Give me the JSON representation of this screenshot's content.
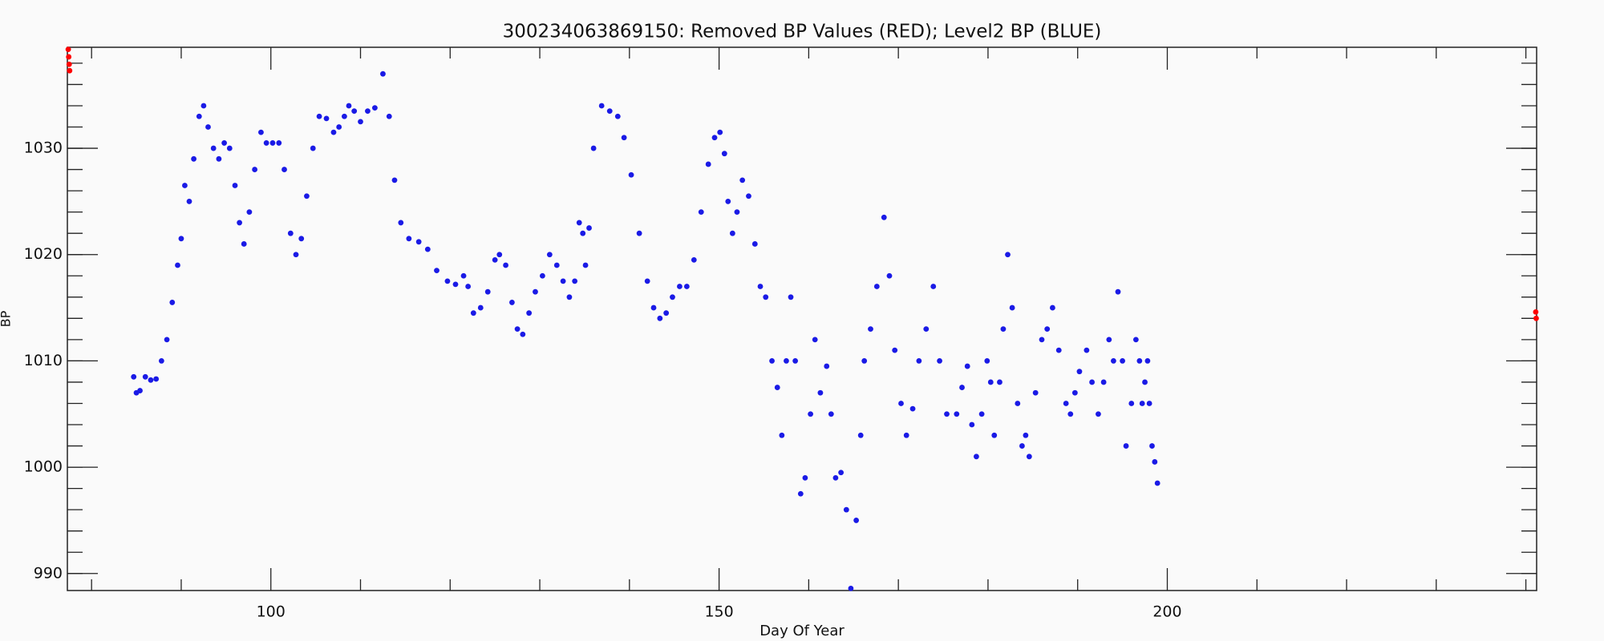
{
  "chart_data": {
    "type": "scatter",
    "title": "300234063869150: Removed BP Values (RED); Level2 BP (BLUE)",
    "x_label": "Day Of Year",
    "y_label": "BP",
    "xlim": [
      77.3,
      241.2
    ],
    "ylim": [
      988.4,
      1039.5
    ],
    "xticks": [
      100,
      150,
      200
    ],
    "yticks": [
      990,
      1000,
      1010,
      1020,
      1030
    ],
    "xminorticks": [
      80,
      90,
      110,
      120,
      130,
      140,
      160,
      170,
      180,
      190,
      210,
      220,
      230,
      240
    ],
    "yminorticks": [
      990,
      992,
      994,
      996,
      998,
      1000,
      1002,
      1004,
      1006,
      1008,
      1010,
      1012,
      1014,
      1016,
      1018,
      1020,
      1022,
      1024,
      1026,
      1028,
      1030,
      1032,
      1034,
      1036,
      1038
    ],
    "series": [
      {
        "color": "#ff0000",
        "x": [
          77.4,
          77.45,
          77.5,
          77.55,
          241.1,
          241.15
        ],
        "values": [
          1039.3,
          1038.6,
          1037.9,
          1037.3,
          1014.6,
          1014.0
        ]
      },
      {
        "color": "#1a1ae6",
        "x": [
          84.7,
          85.0,
          85.4,
          86.0,
          86.6,
          87.2,
          87.8,
          88.4,
          89.0,
          89.6,
          90.0,
          90.4,
          90.9,
          91.4,
          92.0,
          92.5,
          93.0,
          93.6,
          94.2,
          94.8,
          95.4,
          96.0,
          96.5,
          97.0,
          97.6,
          98.2,
          98.9,
          99.5,
          100.2,
          100.9,
          101.5,
          102.2,
          102.8,
          103.4,
          104.0,
          104.7,
          105.4,
          106.2,
          107.0,
          107.6,
          108.2,
          108.7,
          109.3,
          110.0,
          110.8,
          111.6,
          112.5,
          113.2,
          113.8,
          114.5,
          115.4,
          116.5,
          117.5,
          118.5,
          119.7,
          120.6,
          121.5,
          122.0,
          122.6,
          123.4,
          124.2,
          125.0,
          125.5,
          126.2,
          126.9,
          127.5,
          128.1,
          128.8,
          129.5,
          130.3,
          131.1,
          131.9,
          132.6,
          133.3,
          133.9,
          134.4,
          134.8,
          135.1,
          135.5,
          136.0,
          136.9,
          137.8,
          138.7,
          139.4,
          140.2,
          141.1,
          142.0,
          142.7,
          143.4,
          144.1,
          144.8,
          145.6,
          146.4,
          147.2,
          148.0,
          148.8,
          149.5,
          150.1,
          150.6,
          151.0,
          151.5,
          152.0,
          152.6,
          153.3,
          154.0,
          154.6,
          155.2,
          155.9,
          156.5,
          157.0,
          157.5,
          158.0,
          158.5,
          159.1,
          159.6,
          160.2,
          160.7,
          161.3,
          162.0,
          162.5,
          163.0,
          163.6,
          164.2,
          164.7,
          165.3,
          165.8,
          166.2,
          166.9,
          167.6,
          168.4,
          169.0,
          169.6,
          170.3,
          170.9,
          171.6,
          172.3,
          173.1,
          173.9,
          174.6,
          175.4,
          176.5,
          177.1,
          177.7,
          178.2,
          178.7,
          179.3,
          179.9,
          180.3,
          180.7,
          181.3,
          181.7,
          182.2,
          182.7,
          183.3,
          183.8,
          184.2,
          184.6,
          185.3,
          186.0,
          186.6,
          187.2,
          187.9,
          188.7,
          189.2,
          189.7,
          190.2,
          191.0,
          191.6,
          192.3,
          192.9,
          193.5,
          194.0,
          194.5,
          195.0,
          195.4,
          196.0,
          196.5,
          196.9,
          197.2,
          197.5,
          197.8,
          198.0,
          198.3,
          198.6,
          198.9
        ],
        "values": [
          1008.5,
          1007.0,
          1007.2,
          1008.5,
          1008.2,
          1008.3,
          1010.0,
          1012.0,
          1015.5,
          1019.0,
          1021.5,
          1026.5,
          1025.0,
          1029.0,
          1033.0,
          1034.0,
          1032.0,
          1030.0,
          1029.0,
          1030.5,
          1030.0,
          1026.5,
          1023.0,
          1021.0,
          1024.0,
          1028.0,
          1031.5,
          1030.5,
          1030.5,
          1030.5,
          1028.0,
          1022.0,
          1020.0,
          1021.5,
          1025.5,
          1030.0,
          1033.0,
          1032.8,
          1031.5,
          1032.0,
          1033.0,
          1034.0,
          1033.5,
          1032.5,
          1033.5,
          1033.8,
          1037.0,
          1033.0,
          1027.0,
          1023.0,
          1021.5,
          1021.2,
          1020.5,
          1018.5,
          1017.5,
          1017.2,
          1018.0,
          1017.0,
          1014.5,
          1015.0,
          1016.5,
          1019.5,
          1020.0,
          1019.0,
          1015.5,
          1013.0,
          1012.5,
          1014.5,
          1016.5,
          1018.0,
          1020.0,
          1019.0,
          1017.5,
          1016.0,
          1017.5,
          1023.0,
          1022.0,
          1019.0,
          1022.5,
          1030.0,
          1034.0,
          1033.5,
          1033.0,
          1031.0,
          1027.5,
          1022.0,
          1017.5,
          1015.0,
          1014.0,
          1014.5,
          1016.0,
          1017.0,
          1017.0,
          1019.5,
          1024.0,
          1028.5,
          1031.0,
          1031.5,
          1029.5,
          1025.0,
          1022.0,
          1024.0,
          1027.0,
          1025.5,
          1021.0,
          1017.0,
          1016.0,
          1010.0,
          1007.5,
          1003.0,
          1010.0,
          1016.0,
          1010.0,
          997.5,
          999.0,
          1005.0,
          1012.0,
          1007.0,
          1009.5,
          1005.0,
          999.0,
          999.5,
          996.0,
          988.6,
          995.0,
          1003.0,
          1010.0,
          1013.0,
          1017.0,
          1023.5,
          1018.0,
          1011.0,
          1006.0,
          1003.0,
          1005.5,
          1010.0,
          1013.0,
          1017.0,
          1010.0,
          1005.0,
          1005.0,
          1007.5,
          1009.5,
          1004.0,
          1001.0,
          1005.0,
          1010.0,
          1008.0,
          1003.0,
          1008.0,
          1013.0,
          1020.0,
          1015.0,
          1006.0,
          1002.0,
          1003.0,
          1001.0,
          1007.0,
          1012.0,
          1013.0,
          1015.0,
          1011.0,
          1006.0,
          1005.0,
          1007.0,
          1009.0,
          1011.0,
          1008.0,
          1005.0,
          1008.0,
          1012.0,
          1010.0,
          1016.5,
          1010.0,
          1002.0,
          1006.0,
          1012.0,
          1010.0,
          1006.0,
          1008.0,
          1010.0,
          1006.0,
          1002.0,
          1000.5,
          998.5
        ]
      }
    ]
  }
}
